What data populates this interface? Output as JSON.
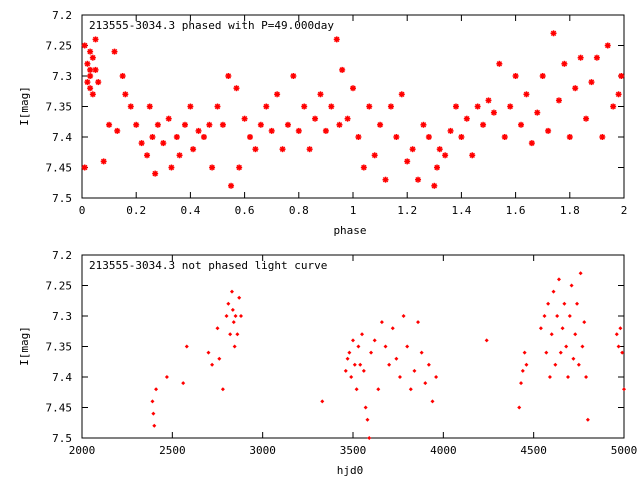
{
  "chart_data": [
    {
      "type": "scatter",
      "title": "213555-3034.3 phased with P=49.000day",
      "xlabel": "phase",
      "ylabel": "I[mag]",
      "xlim": [
        0,
        2
      ],
      "ylim": [
        7.2,
        7.5
      ],
      "y_inverted": true,
      "x_ticks": [
        "0",
        "0.2",
        "0.4",
        "0.6",
        "0.8",
        "1",
        "1.2",
        "1.4",
        "1.6",
        "1.8",
        "2"
      ],
      "y_ticks": [
        "7.2",
        "7.25",
        "7.3",
        "7.35",
        "7.4",
        "7.45",
        "7.5"
      ],
      "grid": false,
      "marker": "star",
      "color": "#ff0000",
      "points": [
        [
          0.01,
          7.25
        ],
        [
          0.01,
          7.45
        ],
        [
          0.02,
          7.28
        ],
        [
          0.02,
          7.31
        ],
        [
          0.03,
          7.26
        ],
        [
          0.03,
          7.29
        ],
        [
          0.03,
          7.3
        ],
        [
          0.03,
          7.32
        ],
        [
          0.04,
          7.27
        ],
        [
          0.04,
          7.33
        ],
        [
          0.05,
          7.29
        ],
        [
          0.05,
          7.24
        ],
        [
          0.06,
          7.31
        ],
        [
          0.08,
          7.44
        ],
        [
          0.1,
          7.38
        ],
        [
          0.12,
          7.26
        ],
        [
          0.13,
          7.39
        ],
        [
          0.15,
          7.3
        ],
        [
          0.16,
          7.33
        ],
        [
          0.18,
          7.35
        ],
        [
          0.2,
          7.38
        ],
        [
          0.22,
          7.41
        ],
        [
          0.24,
          7.43
        ],
        [
          0.25,
          7.35
        ],
        [
          0.26,
          7.4
        ],
        [
          0.27,
          7.46
        ],
        [
          0.28,
          7.38
        ],
        [
          0.3,
          7.41
        ],
        [
          0.32,
          7.37
        ],
        [
          0.33,
          7.45
        ],
        [
          0.35,
          7.4
        ],
        [
          0.36,
          7.43
        ],
        [
          0.38,
          7.38
        ],
        [
          0.4,
          7.35
        ],
        [
          0.41,
          7.42
        ],
        [
          0.43,
          7.39
        ],
        [
          0.45,
          7.4
        ],
        [
          0.47,
          7.38
        ],
        [
          0.48,
          7.45
        ],
        [
          0.5,
          7.35
        ],
        [
          0.52,
          7.38
        ],
        [
          0.54,
          7.3
        ],
        [
          0.55,
          7.48
        ],
        [
          0.57,
          7.32
        ],
        [
          0.58,
          7.45
        ],
        [
          0.6,
          7.37
        ],
        [
          0.62,
          7.4
        ],
        [
          0.64,
          7.42
        ],
        [
          0.66,
          7.38
        ],
        [
          0.68,
          7.35
        ],
        [
          0.7,
          7.39
        ],
        [
          0.72,
          7.33
        ],
        [
          0.74,
          7.42
        ],
        [
          0.76,
          7.38
        ],
        [
          0.78,
          7.3
        ],
        [
          0.8,
          7.39
        ],
        [
          0.82,
          7.35
        ],
        [
          0.84,
          7.42
        ],
        [
          0.86,
          7.37
        ],
        [
          0.88,
          7.33
        ],
        [
          0.9,
          7.39
        ],
        [
          0.92,
          7.35
        ],
        [
          0.94,
          7.24
        ],
        [
          0.95,
          7.38
        ],
        [
          0.96,
          7.29
        ],
        [
          0.98,
          7.37
        ],
        [
          1.0,
          7.32
        ],
        [
          1.02,
          7.4
        ],
        [
          1.04,
          7.45
        ],
        [
          1.06,
          7.35
        ],
        [
          1.08,
          7.43
        ],
        [
          1.1,
          7.38
        ],
        [
          1.12,
          7.47
        ],
        [
          1.14,
          7.35
        ],
        [
          1.16,
          7.4
        ],
        [
          1.18,
          7.33
        ],
        [
          1.2,
          7.44
        ],
        [
          1.22,
          7.42
        ],
        [
          1.24,
          7.47
        ],
        [
          1.26,
          7.38
        ],
        [
          1.28,
          7.4
        ],
        [
          1.3,
          7.48
        ],
        [
          1.31,
          7.45
        ],
        [
          1.32,
          7.42
        ],
        [
          1.34,
          7.43
        ],
        [
          1.36,
          7.39
        ],
        [
          1.38,
          7.35
        ],
        [
          1.4,
          7.4
        ],
        [
          1.42,
          7.37
        ],
        [
          1.44,
          7.43
        ],
        [
          1.46,
          7.35
        ],
        [
          1.48,
          7.38
        ],
        [
          1.5,
          7.34
        ],
        [
          1.52,
          7.36
        ],
        [
          1.54,
          7.28
        ],
        [
          1.56,
          7.4
        ],
        [
          1.58,
          7.35
        ],
        [
          1.6,
          7.3
        ],
        [
          1.62,
          7.38
        ],
        [
          1.64,
          7.33
        ],
        [
          1.66,
          7.41
        ],
        [
          1.68,
          7.36
        ],
        [
          1.7,
          7.3
        ],
        [
          1.72,
          7.39
        ],
        [
          1.74,
          7.23
        ],
        [
          1.76,
          7.34
        ],
        [
          1.78,
          7.28
        ],
        [
          1.8,
          7.4
        ],
        [
          1.82,
          7.32
        ],
        [
          1.84,
          7.27
        ],
        [
          1.86,
          7.37
        ],
        [
          1.88,
          7.31
        ],
        [
          1.9,
          7.27
        ],
        [
          1.92,
          7.4
        ],
        [
          1.94,
          7.25
        ],
        [
          1.96,
          7.35
        ],
        [
          1.98,
          7.33
        ],
        [
          1.99,
          7.3
        ]
      ]
    },
    {
      "type": "scatter",
      "title": "213555-3034.3 not phased light curve",
      "xlabel": "hjd0",
      "ylabel": "I[mag]",
      "xlim": [
        2000,
        5000
      ],
      "ylim": [
        7.2,
        7.5
      ],
      "y_inverted": true,
      "x_ticks": [
        "2000",
        "2500",
        "3000",
        "3500",
        "4000",
        "4500",
        "5000"
      ],
      "y_ticks": [
        "7.2",
        "7.25",
        "7.3",
        "7.35",
        "7.4",
        "7.45",
        "7.5"
      ],
      "grid": false,
      "marker": "diamond",
      "color": "#ff0000",
      "points": [
        [
          2390,
          7.44
        ],
        [
          2395,
          7.46
        ],
        [
          2400,
          7.48
        ],
        [
          2410,
          7.42
        ],
        [
          2470,
          7.4
        ],
        [
          2560,
          7.41
        ],
        [
          2580,
          7.35
        ],
        [
          2700,
          7.36
        ],
        [
          2720,
          7.38
        ],
        [
          2750,
          7.32
        ],
        [
          2760,
          7.37
        ],
        [
          2780,
          7.42
        ],
        [
          2800,
          7.3
        ],
        [
          2810,
          7.28
        ],
        [
          2820,
          7.33
        ],
        [
          2830,
          7.26
        ],
        [
          2835,
          7.29
        ],
        [
          2840,
          7.31
        ],
        [
          2845,
          7.35
        ],
        [
          2850,
          7.3
        ],
        [
          2860,
          7.33
        ],
        [
          2870,
          7.27
        ],
        [
          2880,
          7.3
        ],
        [
          3330,
          7.44
        ],
        [
          3460,
          7.39
        ],
        [
          3470,
          7.37
        ],
        [
          3480,
          7.36
        ],
        [
          3490,
          7.4
        ],
        [
          3500,
          7.34
        ],
        [
          3510,
          7.38
        ],
        [
          3520,
          7.42
        ],
        [
          3530,
          7.35
        ],
        [
          3540,
          7.38
        ],
        [
          3550,
          7.33
        ],
        [
          3560,
          7.39
        ],
        [
          3570,
          7.45
        ],
        [
          3580,
          7.47
        ],
        [
          3590,
          7.5
        ],
        [
          3600,
          7.36
        ],
        [
          3620,
          7.34
        ],
        [
          3640,
          7.42
        ],
        [
          3660,
          7.31
        ],
        [
          3680,
          7.35
        ],
        [
          3700,
          7.38
        ],
        [
          3720,
          7.32
        ],
        [
          3740,
          7.37
        ],
        [
          3760,
          7.4
        ],
        [
          3780,
          7.3
        ],
        [
          3800,
          7.35
        ],
        [
          3820,
          7.42
        ],
        [
          3840,
          7.39
        ],
        [
          3860,
          7.31
        ],
        [
          3880,
          7.36
        ],
        [
          3900,
          7.41
        ],
        [
          3920,
          7.38
        ],
        [
          3940,
          7.44
        ],
        [
          3960,
          7.4
        ],
        [
          4240,
          7.34
        ],
        [
          4420,
          7.45
        ],
        [
          4430,
          7.41
        ],
        [
          4440,
          7.39
        ],
        [
          4450,
          7.36
        ],
        [
          4460,
          7.38
        ],
        [
          4540,
          7.32
        ],
        [
          4560,
          7.3
        ],
        [
          4570,
          7.36
        ],
        [
          4580,
          7.28
        ],
        [
          4590,
          7.4
        ],
        [
          4600,
          7.33
        ],
        [
          4610,
          7.26
        ],
        [
          4620,
          7.38
        ],
        [
          4630,
          7.3
        ],
        [
          4640,
          7.24
        ],
        [
          4650,
          7.36
        ],
        [
          4660,
          7.32
        ],
        [
          4670,
          7.28
        ],
        [
          4680,
          7.35
        ],
        [
          4690,
          7.4
        ],
        [
          4700,
          7.3
        ],
        [
          4710,
          7.25
        ],
        [
          4720,
          7.37
        ],
        [
          4730,
          7.33
        ],
        [
          4740,
          7.28
        ],
        [
          4750,
          7.38
        ],
        [
          4760,
          7.23
        ],
        [
          4770,
          7.35
        ],
        [
          4780,
          7.31
        ],
        [
          4790,
          7.4
        ],
        [
          4800,
          7.47
        ],
        [
          4960,
          7.33
        ],
        [
          4970,
          7.35
        ],
        [
          4980,
          7.32
        ],
        [
          4990,
          7.36
        ],
        [
          5000,
          7.42
        ]
      ]
    }
  ]
}
